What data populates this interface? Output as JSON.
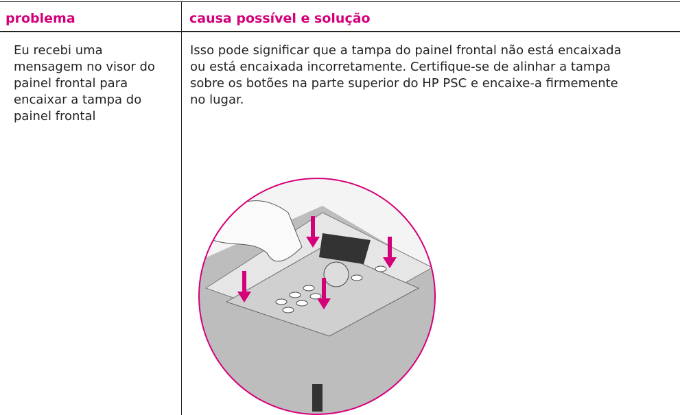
{
  "table": {
    "header": [
      "problema",
      "causa possível e solução"
    ],
    "rows": [
      {
        "problem": [
          "Eu recebi uma",
          "mensagem no visor do",
          "painel frontal para",
          "encaixar a tampa do",
          "painel frontal"
        ],
        "solution": [
          "Isso pode significar que a tampa do painel frontal não está encaixada",
          "ou está encaixada incorretamente. Certifique-se de alinhar a tampa",
          "sobre os botões na parte superior do HP PSC e encaixe-a firmemente",
          "no lugar."
        ]
      }
    ]
  }
}
